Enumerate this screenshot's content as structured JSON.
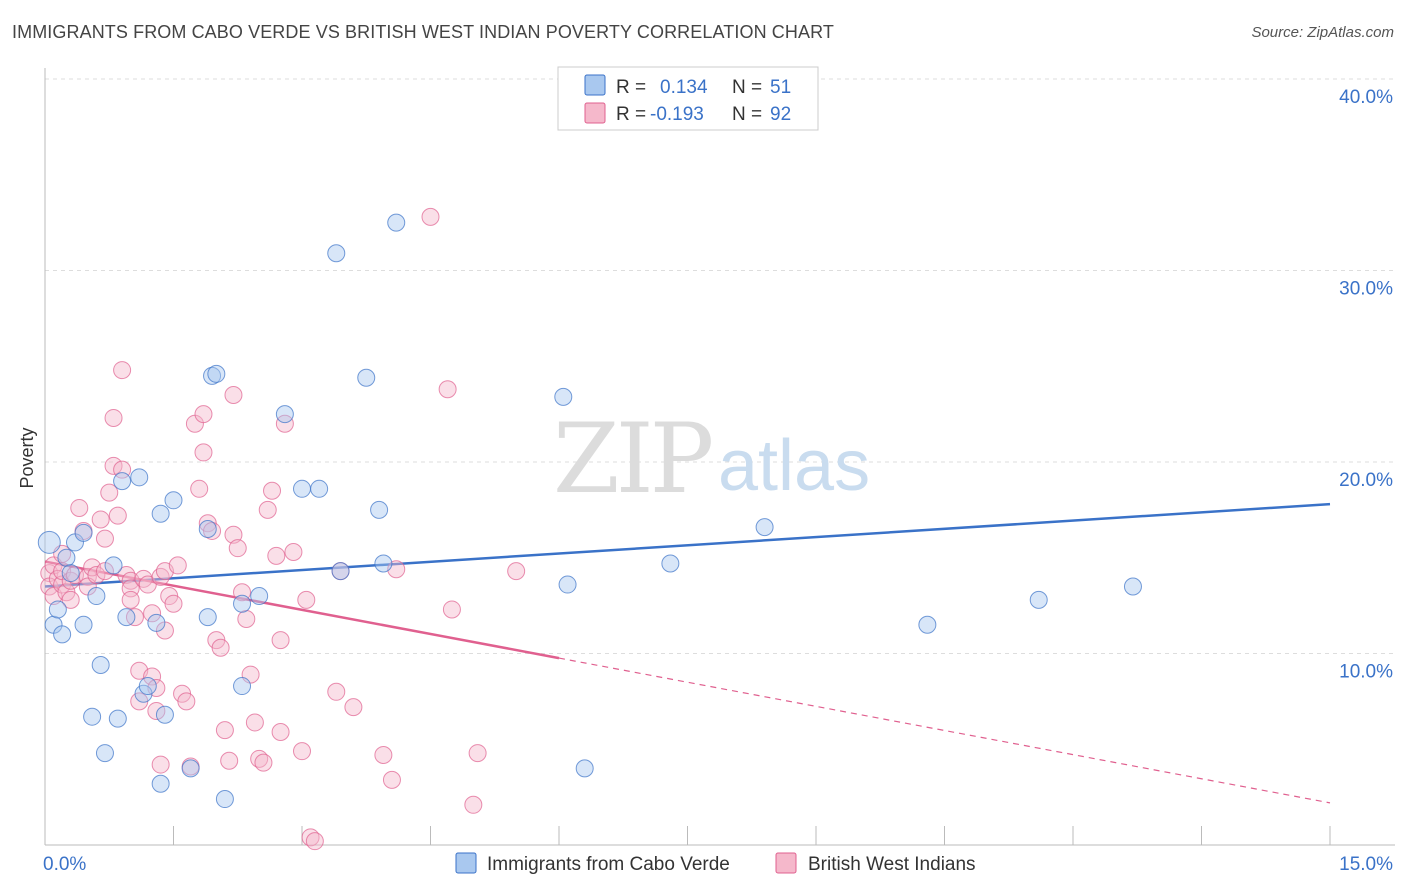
{
  "header": {
    "title": "IMMIGRANTS FROM CABO VERDE VS BRITISH WEST INDIAN POVERTY CORRELATION CHART",
    "source": "Source: ZipAtlas.com"
  },
  "watermark": {
    "zip": "ZIP",
    "atlas": "atlas"
  },
  "colors": {
    "blue": "#3a72c8",
    "blue_fill": "#a9c8ef",
    "pink": "#e0608f",
    "pink_fill": "#f5b8cb",
    "grid": "#dddddd",
    "axis": "#bbbbbb"
  },
  "legend": {
    "r_label": "R =",
    "n_label": "N =",
    "rows": [
      {
        "r": "0.134",
        "n": "51"
      },
      {
        "r": "-0.193",
        "n": "92"
      }
    ]
  },
  "bottom_legend": [
    "Immigrants from Cabo Verde",
    "British West Indians"
  ],
  "chart_data": {
    "type": "scatter",
    "title": "IMMIGRANTS FROM CABO VERDE VS BRITISH WEST INDIAN POVERTY CORRELATION CHART",
    "xlabel": "",
    "ylabel": "Poverty",
    "xlim": [
      0,
      15
    ],
    "ylim": [
      0,
      40
    ],
    "x_ticks": [
      0,
      1.5,
      3,
      4.5,
      6,
      7.5,
      9,
      10.5,
      12,
      13.5,
      15
    ],
    "x_tick_labels": [
      "0.0%",
      "15.0%"
    ],
    "y_ticks": [
      10,
      20,
      30,
      40
    ],
    "y_tick_labels": [
      "10.0%",
      "20.0%",
      "30.0%",
      "40.0%"
    ],
    "series": [
      {
        "name": "Immigrants from Cabo Verde",
        "color": "#3a72c8",
        "r": 0.134,
        "n": 51,
        "trend": {
          "x": [
            0,
            15
          ],
          "y": [
            13.5,
            17.8
          ],
          "dashed_from": null
        },
        "points": [
          [
            0.05,
            15.8
          ],
          [
            0.1,
            11.5
          ],
          [
            0.15,
            12.3
          ],
          [
            0.2,
            11.0
          ],
          [
            0.25,
            15.0
          ],
          [
            0.3,
            14.2
          ],
          [
            0.35,
            15.8
          ],
          [
            0.45,
            16.3
          ],
          [
            0.45,
            11.5
          ],
          [
            0.55,
            6.7
          ],
          [
            0.6,
            13.0
          ],
          [
            0.65,
            9.4
          ],
          [
            0.7,
            4.8
          ],
          [
            0.8,
            14.6
          ],
          [
            0.85,
            6.6
          ],
          [
            0.9,
            19.0
          ],
          [
            0.95,
            11.9
          ],
          [
            1.1,
            19.2
          ],
          [
            1.15,
            7.9
          ],
          [
            1.2,
            8.3
          ],
          [
            1.3,
            11.6
          ],
          [
            1.35,
            3.2
          ],
          [
            1.35,
            17.3
          ],
          [
            1.4,
            6.8
          ],
          [
            1.5,
            18.0
          ],
          [
            1.7,
            4.0
          ],
          [
            1.9,
            16.5
          ],
          [
            1.9,
            11.9
          ],
          [
            1.95,
            24.5
          ],
          [
            2.0,
            24.6
          ],
          [
            2.1,
            2.4
          ],
          [
            2.3,
            8.3
          ],
          [
            2.3,
            12.6
          ],
          [
            2.5,
            13.0
          ],
          [
            2.8,
            22.5
          ],
          [
            3.0,
            18.6
          ],
          [
            3.2,
            18.6
          ],
          [
            3.4,
            30.9
          ],
          [
            3.45,
            14.3
          ],
          [
            3.75,
            24.4
          ],
          [
            3.9,
            17.5
          ],
          [
            3.95,
            14.7
          ],
          [
            4.1,
            32.5
          ],
          [
            6.05,
            23.4
          ],
          [
            6.1,
            13.6
          ],
          [
            6.3,
            4.0
          ],
          [
            7.3,
            14.7
          ],
          [
            8.4,
            16.6
          ],
          [
            10.3,
            11.5
          ],
          [
            11.6,
            12.8
          ],
          [
            12.7,
            13.5
          ]
        ]
      },
      {
        "name": "British West Indians",
        "color": "#e0608f",
        "r": -0.193,
        "n": 92,
        "trend": {
          "x": [
            0,
            15
          ],
          "y": [
            14.8,
            2.2
          ],
          "dashed_from": 6.0
        },
        "points": [
          [
            0.05,
            14.2
          ],
          [
            0.05,
            13.5
          ],
          [
            0.1,
            14.6
          ],
          [
            0.1,
            13.0
          ],
          [
            0.15,
            13.9
          ],
          [
            0.2,
            13.6
          ],
          [
            0.2,
            14.3
          ],
          [
            0.2,
            15.2
          ],
          [
            0.25,
            13.2
          ],
          [
            0.3,
            13.8
          ],
          [
            0.3,
            12.8
          ],
          [
            0.35,
            14.1
          ],
          [
            0.4,
            17.6
          ],
          [
            0.45,
            16.4
          ],
          [
            0.5,
            14.0
          ],
          [
            0.5,
            13.5
          ],
          [
            0.55,
            14.5
          ],
          [
            0.6,
            14.1
          ],
          [
            0.65,
            17.0
          ],
          [
            0.7,
            14.3
          ],
          [
            0.7,
            16.0
          ],
          [
            0.75,
            18.4
          ],
          [
            0.8,
            22.3
          ],
          [
            0.8,
            19.8
          ],
          [
            0.85,
            17.2
          ],
          [
            0.9,
            24.8
          ],
          [
            0.9,
            19.6
          ],
          [
            0.95,
            14.1
          ],
          [
            1.0,
            13.8
          ],
          [
            1.0,
            13.4
          ],
          [
            1.0,
            12.8
          ],
          [
            1.05,
            11.9
          ],
          [
            1.1,
            7.5
          ],
          [
            1.1,
            9.1
          ],
          [
            1.15,
            13.9
          ],
          [
            1.2,
            13.6
          ],
          [
            1.25,
            12.1
          ],
          [
            1.25,
            8.8
          ],
          [
            1.3,
            8.2
          ],
          [
            1.3,
            7.0
          ],
          [
            1.35,
            14.0
          ],
          [
            1.4,
            14.3
          ],
          [
            1.4,
            11.2
          ],
          [
            1.45,
            13.0
          ],
          [
            1.5,
            12.6
          ],
          [
            1.55,
            14.6
          ],
          [
            1.6,
            7.9
          ],
          [
            1.65,
            7.5
          ],
          [
            1.7,
            4.1
          ],
          [
            1.75,
            22.0
          ],
          [
            1.8,
            18.6
          ],
          [
            1.85,
            22.5
          ],
          [
            1.85,
            20.5
          ],
          [
            1.9,
            16.8
          ],
          [
            1.95,
            16.4
          ],
          [
            2.0,
            10.7
          ],
          [
            2.05,
            10.3
          ],
          [
            2.1,
            6.0
          ],
          [
            2.15,
            4.4
          ],
          [
            2.2,
            23.5
          ],
          [
            2.2,
            16.2
          ],
          [
            2.25,
            15.5
          ],
          [
            2.3,
            13.2
          ],
          [
            2.35,
            11.8
          ],
          [
            2.4,
            8.9
          ],
          [
            2.45,
            6.4
          ],
          [
            2.5,
            4.5
          ],
          [
            2.55,
            4.3
          ],
          [
            2.6,
            17.5
          ],
          [
            2.65,
            18.5
          ],
          [
            2.7,
            15.1
          ],
          [
            2.75,
            10.7
          ],
          [
            2.75,
            5.9
          ],
          [
            2.8,
            22.0
          ],
          [
            2.9,
            15.3
          ],
          [
            3.0,
            4.9
          ],
          [
            3.05,
            12.8
          ],
          [
            3.1,
            0.4
          ],
          [
            3.15,
            0.2
          ],
          [
            3.4,
            8.0
          ],
          [
            3.45,
            14.3
          ],
          [
            3.6,
            7.2
          ],
          [
            3.95,
            4.7
          ],
          [
            4.05,
            3.4
          ],
          [
            4.1,
            14.4
          ],
          [
            4.5,
            32.8
          ],
          [
            4.7,
            23.8
          ],
          [
            4.75,
            12.3
          ],
          [
            5.0,
            2.1
          ],
          [
            5.05,
            4.8
          ],
          [
            5.5,
            14.3
          ],
          [
            1.35,
            4.2
          ]
        ]
      }
    ]
  }
}
